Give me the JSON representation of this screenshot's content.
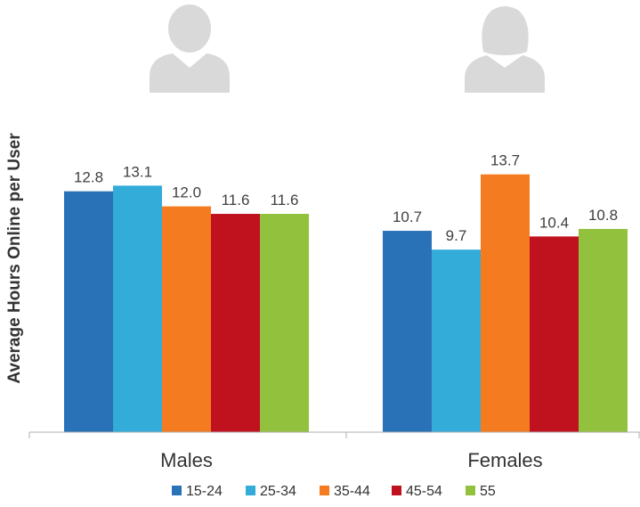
{
  "chart_data": {
    "type": "bar",
    "title": "",
    "xlabel": "",
    "ylabel": "Average Hours Online per User",
    "ylim": [
      0,
      16.1
    ],
    "categories": [
      "Males",
      "Females"
    ],
    "series": [
      {
        "name": "15-24",
        "color": "#2a72b8",
        "values": [
          12.8,
          10.7
        ]
      },
      {
        "name": "25-34",
        "color": "#33acd9",
        "values": [
          13.1,
          9.7
        ]
      },
      {
        "name": "35-44",
        "color": "#f47b20",
        "values": [
          12.0,
          13.7
        ]
      },
      {
        "name": "45-54",
        "color": "#c0111f",
        "values": [
          11.6,
          10.4
        ]
      },
      {
        "name": "55",
        "color": "#92c13e",
        "values": [
          11.6,
          10.8
        ]
      }
    ],
    "legend_position": "bottom",
    "grid": false
  },
  "icons": [
    "male-user-icon",
    "female-user-icon"
  ],
  "icon_color": "#d9d9d9"
}
